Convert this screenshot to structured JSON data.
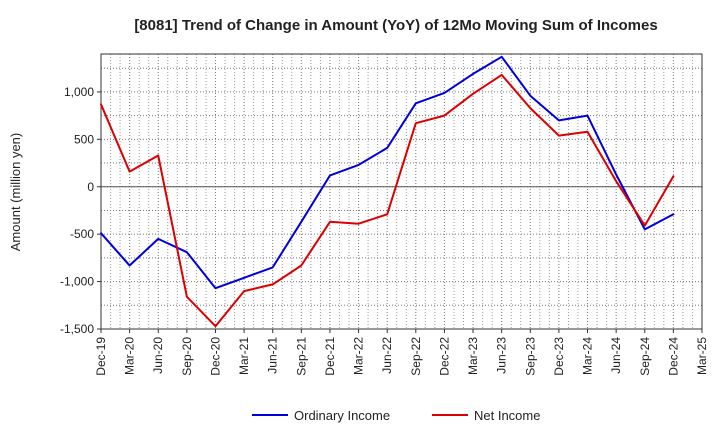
{
  "chart_data": {
    "type": "line",
    "title": "[8081]  Trend of Change in Amount (YoY) of 12Mo Moving Sum of Incomes",
    "xlabel": "",
    "ylabel": "Amount (million yen)",
    "ylim": [
      -1500,
      1400
    ],
    "y_ticks": [
      -1500,
      -1000,
      -500,
      0,
      500,
      1000
    ],
    "y_tick_labels": [
      "-1,500",
      "-1,000",
      "-500",
      "0",
      "500",
      "1,000"
    ],
    "x_tick_labels": [
      "Dec-19",
      "Mar-20",
      "Jun-20",
      "Sep-20",
      "Dec-20",
      "Mar-21",
      "Jun-21",
      "Sep-21",
      "Dec-21",
      "Mar-22",
      "Jun-22",
      "Sep-22",
      "Dec-22",
      "Mar-23",
      "Jun-23",
      "Sep-23",
      "Dec-23",
      "Mar-24",
      "Jun-24",
      "Sep-24",
      "Dec-24",
      "Mar-25"
    ],
    "categories": [
      "Dec-19",
      "Mar-20",
      "Jun-20",
      "Sep-20",
      "Dec-20",
      "Mar-21",
      "Jun-21",
      "Sep-21",
      "Dec-21",
      "Mar-22",
      "Jun-22",
      "Sep-22",
      "Dec-22",
      "Mar-23",
      "Jun-23",
      "Sep-23",
      "Dec-23",
      "Mar-24",
      "Jun-24",
      "Sep-24",
      "Dec-24"
    ],
    "grid": true,
    "legend_position": "bottom-center",
    "series": [
      {
        "name": "Ordinary Income",
        "color": "#0000dd",
        "values": [
          -490,
          -830,
          -550,
          -690,
          -1070,
          -960,
          -850,
          -370,
          120,
          230,
          410,
          880,
          990,
          1190,
          1370,
          960,
          700,
          750,
          130,
          -450,
          -290
        ]
      },
      {
        "name": "Net Income",
        "color": "#dd0000",
        "values": [
          870,
          160,
          330,
          -1160,
          -1470,
          -1100,
          -1030,
          -830,
          -370,
          -390,
          -290,
          670,
          750,
          980,
          1180,
          830,
          540,
          580,
          60,
          -410,
          110
        ]
      }
    ]
  }
}
